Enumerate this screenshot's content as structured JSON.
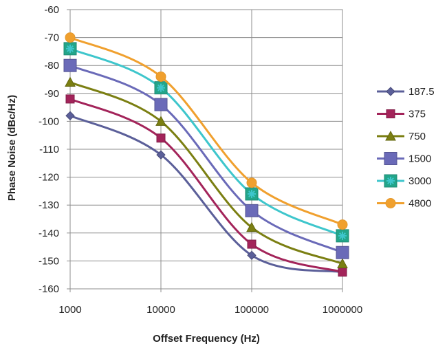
{
  "chart_data": {
    "type": "line",
    "title": "",
    "xlabel": "Offset Frequency (Hz)",
    "ylabel": "Phase Noise (dBc/Hz)",
    "x_scale": "log",
    "categories": [
      "1000",
      "10000",
      "100000",
      "1000000"
    ],
    "x": [
      1000,
      10000,
      100000,
      1000000
    ],
    "ylim": [
      -160,
      -60
    ],
    "yticks": [
      -60,
      -70,
      -80,
      -90,
      -100,
      -110,
      -120,
      -130,
      -140,
      -150,
      -160
    ],
    "grid": true,
    "legend": "right",
    "series": [
      {
        "name": "187.5",
        "color": "#5b5f99",
        "marker": "diamond",
        "values": [
          -98,
          -112,
          -148,
          -154
        ]
      },
      {
        "name": "375",
        "color": "#a3245a",
        "marker": "square",
        "values": [
          -92,
          -106,
          -144,
          -154
        ]
      },
      {
        "name": "750",
        "color": "#7b7f12",
        "marker": "triangle",
        "values": [
          -86,
          -100,
          -138,
          -151
        ]
      },
      {
        "name": "1500",
        "color": "#6a6ab8",
        "marker": "bigsquare",
        "values": [
          -80,
          -94,
          -132,
          -147
        ]
      },
      {
        "name": "3000",
        "color": "#3ec6cc",
        "marker": "star",
        "values": [
          -74,
          -88,
          -126,
          -141
        ]
      },
      {
        "name": "4800",
        "color": "#f0a02e",
        "marker": "circle",
        "values": [
          -70,
          -84,
          -122,
          -137
        ]
      }
    ]
  }
}
